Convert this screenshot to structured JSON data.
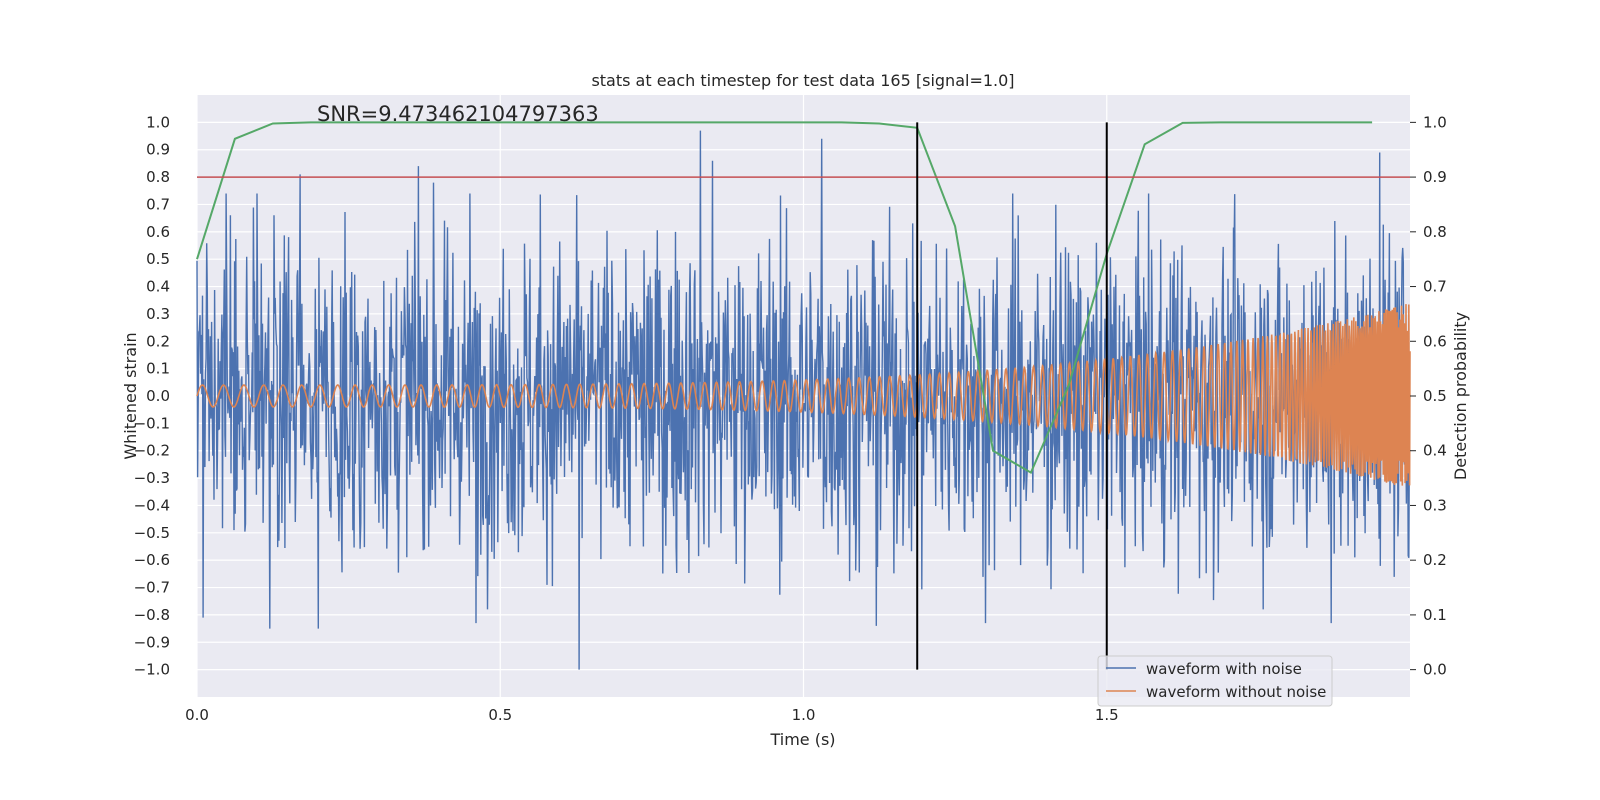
{
  "chart_data": {
    "type": "line",
    "title": "stats at each timestep for test data 165 [signal=1.0]",
    "xlabel": "Time (s)",
    "ylabel": "Whitened strain",
    "y2label": "Detection probability",
    "xlim": [
      0.0,
      2.0
    ],
    "ylim": [
      -1.1,
      1.1
    ],
    "y2lim": [
      -0.05,
      1.05
    ],
    "xticks": [
      "0.0",
      "0.5",
      "1.0",
      "1.5"
    ],
    "yticks": [
      "1.0",
      "0.9",
      "0.8",
      "0.7",
      "0.6",
      "0.5",
      "0.4",
      "0.3",
      "0.2",
      "0.1",
      "0.0",
      "−0.1",
      "−0.2",
      "−0.3",
      "−0.4",
      "−0.5",
      "−0.6",
      "−0.7",
      "−0.8",
      "−0.9",
      "−1.0"
    ],
    "y2ticks": [
      "1.0",
      "0.9",
      "0.8",
      "0.7",
      "0.6",
      "0.5",
      "0.4",
      "0.3",
      "0.2",
      "0.1",
      "0.0"
    ],
    "grid": true,
    "annotation": "SNR=9.473462104797363",
    "annotation_pos": {
      "x": 0.2,
      "y": 1.0
    },
    "legend": {
      "placement": "lower-right",
      "entries": [
        "waveform with noise",
        "waveform without noise"
      ]
    },
    "colors": {
      "noise": "#4c72b0",
      "clean": "#dd8452",
      "prob": "#55a868",
      "threshold": "#c44e52",
      "marker": "#000000",
      "axes_bg": "#eaeaf2"
    },
    "series": [
      {
        "name": "waveform with noise",
        "axis": "left",
        "description_range": [
          -1.0,
          0.97
        ],
        "peaks": [
          {
            "x": 0.17,
            "y": 0.81
          },
          {
            "x": 0.365,
            "y": 0.84
          },
          {
            "x": 0.39,
            "y": 0.78
          },
          {
            "x": 0.83,
            "y": 0.97
          },
          {
            "x": 0.85,
            "y": 0.86
          },
          {
            "x": 1.03,
            "y": 0.94
          },
          {
            "x": 1.95,
            "y": 0.89
          },
          {
            "x": 0.63,
            "y": -1.0
          },
          {
            "x": 0.12,
            "y": -0.85
          },
          {
            "x": 0.2,
            "y": -0.85
          },
          {
            "x": 0.46,
            "y": -0.83
          },
          {
            "x": 0.01,
            "y": -0.81
          },
          {
            "x": 1.12,
            "y": -0.84
          },
          {
            "x": 1.3,
            "y": -0.83
          },
          {
            "x": 1.87,
            "y": -0.83
          }
        ]
      },
      {
        "name": "waveform without noise",
        "axis": "left",
        "amplitude_start": 0.04,
        "amplitude_end": 0.34,
        "cycles_approx": 160
      },
      {
        "name": "detection probability",
        "axis": "right",
        "x": [
          0.0,
          0.0625,
          0.125,
          0.1875,
          0.25,
          0.3125,
          0.375,
          0.4375,
          0.5,
          0.5625,
          0.625,
          0.6875,
          0.75,
          0.8125,
          0.875,
          0.9375,
          1.0,
          1.0625,
          1.125,
          1.1875,
          1.25,
          1.3125,
          1.375,
          1.4375,
          1.5,
          1.5625,
          1.625,
          1.6875,
          1.75,
          1.8125,
          1.875,
          1.9375
        ],
        "values": [
          0.75,
          0.97,
          0.998,
          1.0,
          1.0,
          1.0,
          1.0,
          1.0,
          1.0,
          1.0,
          1.0,
          1.0,
          1.0,
          1.0,
          1.0,
          1.0,
          1.0,
          1.0,
          0.998,
          0.99,
          0.81,
          0.4,
          0.36,
          0.52,
          0.76,
          0.96,
          0.999,
          1.0,
          1.0,
          1.0,
          1.0,
          1.0
        ]
      }
    ],
    "threshold": {
      "axis": "right",
      "value": 0.9
    },
    "vlines": [
      1.1875,
      1.5
    ]
  }
}
